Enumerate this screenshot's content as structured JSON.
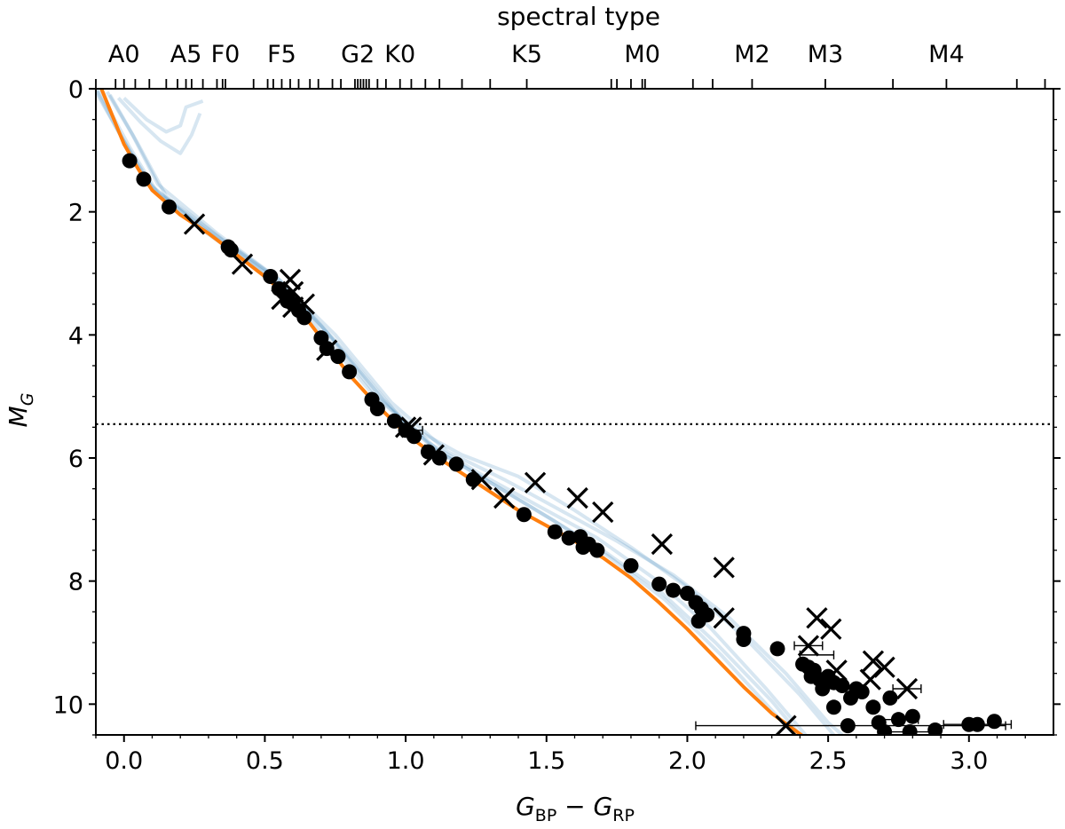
{
  "chart_data": {
    "type": "scatter",
    "title": "",
    "xlabel_main": "G",
    "xlabel_sub1": "BP",
    "xlabel_minus": " − ",
    "xlabel_sub2": "RP",
    "ylabel_main": "M",
    "ylabel_sub": "G",
    "top_axis_label": "spectral type",
    "xlim": [
      -0.1,
      3.3
    ],
    "ylim": [
      10.5,
      0
    ],
    "x_ticks": [
      0.0,
      0.5,
      1.0,
      1.5,
      2.0,
      2.5,
      3.0
    ],
    "x_tick_labels": [
      "0.0",
      "0.5",
      "1.0",
      "1.5",
      "2.0",
      "2.5",
      "3.0"
    ],
    "y_ticks": [
      0,
      2,
      4,
      6,
      8,
      10
    ],
    "y_tick_labels": [
      "0",
      "2",
      "4",
      "6",
      "8",
      "10"
    ],
    "grid": false,
    "legend": "none",
    "colors": {
      "model": "#ff7f0e",
      "isochrones": "#1f77b4",
      "points": "#000000"
    },
    "spectral_types": [
      {
        "label": "A0",
        "x": 0.0
      },
      {
        "label": "A5",
        "x": 0.22
      },
      {
        "label": "F0",
        "x": 0.36
      },
      {
        "label": "F5",
        "x": 0.56
      },
      {
        "label": "G2",
        "x": 0.83
      },
      {
        "label": "K0",
        "x": 0.98
      },
      {
        "label": "K5",
        "x": 1.43
      },
      {
        "label": "M0",
        "x": 1.84
      },
      {
        "label": "M2",
        "x": 2.23
      },
      {
        "label": "M3",
        "x": 2.49
      },
      {
        "label": "M4",
        "x": 2.92
      }
    ],
    "spectral_minor_ticks": [
      -0.1,
      -0.03,
      0.04,
      0.09,
      0.15,
      0.19,
      0.24,
      0.28,
      0.33,
      0.35,
      0.46,
      0.51,
      0.53,
      0.59,
      0.62,
      0.66,
      0.69,
      0.74,
      0.77,
      0.82,
      0.84,
      0.85,
      0.86,
      0.87,
      0.9,
      0.93,
      1.02,
      1.07,
      1.12,
      1.2,
      1.3,
      1.73,
      1.75,
      1.8,
      1.85,
      2.02,
      2.09,
      2.73,
      3.17,
      3.27
    ],
    "threshold_line_y": 5.45,
    "model_line": [
      [
        -0.08,
        0.0
      ],
      [
        -0.04,
        0.45
      ],
      [
        0.0,
        0.9
      ],
      [
        0.05,
        1.3
      ],
      [
        0.1,
        1.65
      ],
      [
        0.2,
        2.05
      ],
      [
        0.3,
        2.35
      ],
      [
        0.4,
        2.7
      ],
      [
        0.5,
        3.05
      ],
      [
        0.6,
        3.45
      ],
      [
        0.7,
        4.05
      ],
      [
        0.8,
        4.65
      ],
      [
        0.9,
        5.15
      ],
      [
        1.0,
        5.6
      ],
      [
        1.1,
        5.95
      ],
      [
        1.2,
        6.25
      ],
      [
        1.3,
        6.55
      ],
      [
        1.4,
        6.85
      ],
      [
        1.5,
        7.1
      ],
      [
        1.6,
        7.35
      ],
      [
        1.7,
        7.62
      ],
      [
        1.8,
        7.95
      ],
      [
        1.9,
        8.35
      ],
      [
        2.0,
        8.78
      ],
      [
        2.1,
        9.25
      ],
      [
        2.2,
        9.72
      ],
      [
        2.3,
        10.15
      ],
      [
        2.42,
        10.55
      ]
    ],
    "isochrones": [
      [
        [
          -0.1,
          0.05
        ],
        [
          0.0,
          0.85
        ],
        [
          0.1,
          1.6
        ],
        [
          0.3,
          2.3
        ],
        [
          0.5,
          2.95
        ],
        [
          0.7,
          3.85
        ],
        [
          0.9,
          5.0
        ],
        [
          1.1,
          5.85
        ],
        [
          1.3,
          6.4
        ],
        [
          1.5,
          6.95
        ],
        [
          1.7,
          7.5
        ],
        [
          1.9,
          8.15
        ],
        [
          2.1,
          9.0
        ],
        [
          2.3,
          9.95
        ],
        [
          2.4,
          10.5
        ]
      ],
      [
        [
          -0.05,
          0.1
        ],
        [
          0.05,
          0.9
        ],
        [
          0.15,
          1.75
        ],
        [
          0.35,
          2.45
        ],
        [
          0.55,
          3.1
        ],
        [
          0.75,
          4.0
        ],
        [
          0.95,
          5.1
        ],
        [
          1.15,
          5.9
        ],
        [
          1.35,
          6.35
        ],
        [
          1.55,
          6.85
        ],
        [
          1.75,
          7.35
        ],
        [
          1.95,
          7.9
        ],
        [
          2.15,
          8.6
        ],
        [
          2.35,
          9.5
        ],
        [
          2.5,
          10.3
        ],
        [
          2.55,
          10.5
        ]
      ],
      [
        [
          -0.09,
          0.02
        ],
        [
          0.02,
          0.95
        ],
        [
          0.12,
          1.7
        ],
        [
          0.32,
          2.4
        ],
        [
          0.52,
          3.05
        ],
        [
          0.72,
          3.95
        ],
        [
          0.92,
          5.05
        ],
        [
          1.12,
          5.9
        ],
        [
          1.32,
          6.45
        ],
        [
          1.52,
          7.0
        ],
        [
          1.72,
          7.6
        ],
        [
          1.92,
          8.3
        ],
        [
          2.12,
          9.2
        ],
        [
          2.32,
          10.2
        ],
        [
          2.38,
          10.5
        ]
      ],
      [
        [
          0.0,
          0.15
        ],
        [
          0.08,
          0.5
        ],
        [
          0.15,
          0.7
        ],
        [
          0.2,
          0.6
        ],
        [
          0.22,
          0.3
        ],
        [
          0.28,
          0.2
        ]
      ],
      [
        [
          -0.02,
          0.15
        ],
        [
          0.06,
          0.55
        ],
        [
          0.13,
          0.85
        ],
        [
          0.2,
          1.05
        ],
        [
          0.24,
          0.75
        ],
        [
          0.27,
          0.4
        ]
      ],
      [
        [
          -0.06,
          0.05
        ],
        [
          0.03,
          0.75
        ],
        [
          0.12,
          1.55
        ],
        [
          0.33,
          2.35
        ],
        [
          0.55,
          3.1
        ],
        [
          0.78,
          4.25
        ],
        [
          1.0,
          5.45
        ],
        [
          1.2,
          5.95
        ],
        [
          1.4,
          6.3
        ],
        [
          1.6,
          6.85
        ],
        [
          1.8,
          7.45
        ],
        [
          2.0,
          8.1
        ],
        [
          2.2,
          8.9
        ],
        [
          2.4,
          9.85
        ],
        [
          2.52,
          10.5
        ]
      ],
      [
        [
          -0.1,
          0.0
        ],
        [
          -0.02,
          0.7
        ],
        [
          0.08,
          1.5
        ],
        [
          0.28,
          2.3
        ],
        [
          0.48,
          2.95
        ],
        [
          0.68,
          3.85
        ],
        [
          0.88,
          4.95
        ],
        [
          1.08,
          5.75
        ],
        [
          1.28,
          6.3
        ],
        [
          1.48,
          6.8
        ],
        [
          1.68,
          7.3
        ],
        [
          1.88,
          7.95
        ],
        [
          2.08,
          8.75
        ],
        [
          2.28,
          9.75
        ],
        [
          2.42,
          10.5
        ]
      ]
    ],
    "points": [
      [
        0.02,
        1.17
      ],
      [
        0.07,
        1.47
      ],
      [
        0.16,
        1.92
      ],
      [
        0.37,
        2.57
      ],
      [
        0.38,
        2.62
      ],
      [
        0.52,
        3.05
      ],
      [
        0.55,
        3.25
      ],
      [
        0.58,
        3.38
      ],
      [
        0.6,
        3.5
      ],
      [
        0.62,
        3.6
      ],
      [
        0.64,
        3.72
      ],
      [
        0.58,
        3.45
      ],
      [
        0.7,
        4.05
      ],
      [
        0.72,
        4.22
      ],
      [
        0.76,
        4.35
      ],
      [
        0.8,
        4.6
      ],
      [
        0.88,
        5.05
      ],
      [
        0.9,
        5.2
      ],
      [
        0.96,
        5.4
      ],
      [
        1.0,
        5.55
      ],
      [
        1.03,
        5.65
      ],
      [
        1.08,
        5.9
      ],
      [
        1.12,
        6.0
      ],
      [
        1.18,
        6.1
      ],
      [
        1.24,
        6.35
      ],
      [
        1.42,
        6.92
      ],
      [
        1.53,
        7.2
      ],
      [
        1.58,
        7.3
      ],
      [
        1.62,
        7.28
      ],
      [
        1.63,
        7.45
      ],
      [
        1.65,
        7.4
      ],
      [
        1.68,
        7.5
      ],
      [
        1.8,
        7.75
      ],
      [
        1.9,
        8.05
      ],
      [
        1.95,
        8.15
      ],
      [
        2.0,
        8.2
      ],
      [
        2.03,
        8.35
      ],
      [
        2.05,
        8.45
      ],
      [
        2.07,
        8.55
      ],
      [
        2.04,
        8.65
      ],
      [
        2.2,
        8.85
      ],
      [
        2.2,
        8.95
      ],
      [
        2.32,
        9.1
      ],
      [
        2.41,
        9.35
      ],
      [
        2.43,
        9.4
      ],
      [
        2.45,
        9.45
      ],
      [
        2.44,
        9.55
      ],
      [
        2.47,
        9.6
      ],
      [
        2.5,
        9.55
      ],
      [
        2.52,
        9.65
      ],
      [
        2.55,
        9.7
      ],
      [
        2.48,
        9.75
      ],
      [
        2.6,
        9.75
      ],
      [
        2.62,
        9.8
      ],
      [
        2.58,
        9.9
      ],
      [
        2.52,
        10.05
      ],
      [
        2.66,
        10.05
      ],
      [
        2.72,
        9.9
      ],
      [
        2.57,
        10.35
      ],
      [
        2.68,
        10.3
      ],
      [
        2.75,
        10.25
      ],
      [
        2.8,
        10.2
      ],
      [
        2.7,
        10.45
      ],
      [
        2.79,
        10.45
      ],
      [
        2.88,
        10.42
      ],
      [
        3.0,
        10.33
      ],
      [
        3.03,
        10.33
      ],
      [
        3.09,
        10.28
      ]
    ],
    "crosses": [
      [
        0.25,
        2.2
      ],
      [
        0.42,
        2.85
      ],
      [
        0.59,
        3.1
      ],
      [
        0.6,
        3.3
      ],
      [
        0.56,
        3.42
      ],
      [
        0.64,
        3.5
      ],
      [
        0.6,
        3.55
      ],
      [
        0.72,
        4.25
      ],
      [
        1.0,
        5.5
      ],
      [
        1.02,
        5.5
      ],
      [
        1.1,
        5.95
      ],
      [
        1.27,
        6.35
      ],
      [
        1.35,
        6.65
      ],
      [
        1.46,
        6.4
      ],
      [
        1.61,
        6.65
      ],
      [
        1.7,
        6.88
      ],
      [
        1.91,
        7.4
      ],
      [
        2.13,
        7.78
      ],
      [
        2.13,
        8.6
      ],
      [
        2.46,
        8.6
      ],
      [
        2.51,
        8.78
      ],
      [
        2.43,
        9.05
      ],
      [
        2.53,
        9.45
      ],
      [
        2.66,
        9.3
      ],
      [
        2.7,
        9.4
      ],
      [
        2.65,
        9.6
      ],
      [
        2.78,
        9.75
      ],
      [
        2.35,
        10.35
      ]
    ],
    "error_bars": [
      {
        "x": 2.58,
        "y": 10.35,
        "xerr": 0.55
      },
      {
        "x": 3.03,
        "y": 10.33,
        "xerr": 0.12
      },
      {
        "x": 2.79,
        "y": 10.45,
        "xerr": 0.09
      },
      {
        "x": 2.78,
        "y": 9.75,
        "xerr": 0.05
      },
      {
        "x": 2.43,
        "y": 9.05,
        "xerr": 0.05
      },
      {
        "x": 2.46,
        "y": 9.2,
        "xerr": 0.06
      },
      {
        "x": 2.75,
        "y": 10.25,
        "xerr": 0.07
      },
      {
        "x": 1.03,
        "y": 5.55,
        "xerr": 0.03
      }
    ]
  }
}
